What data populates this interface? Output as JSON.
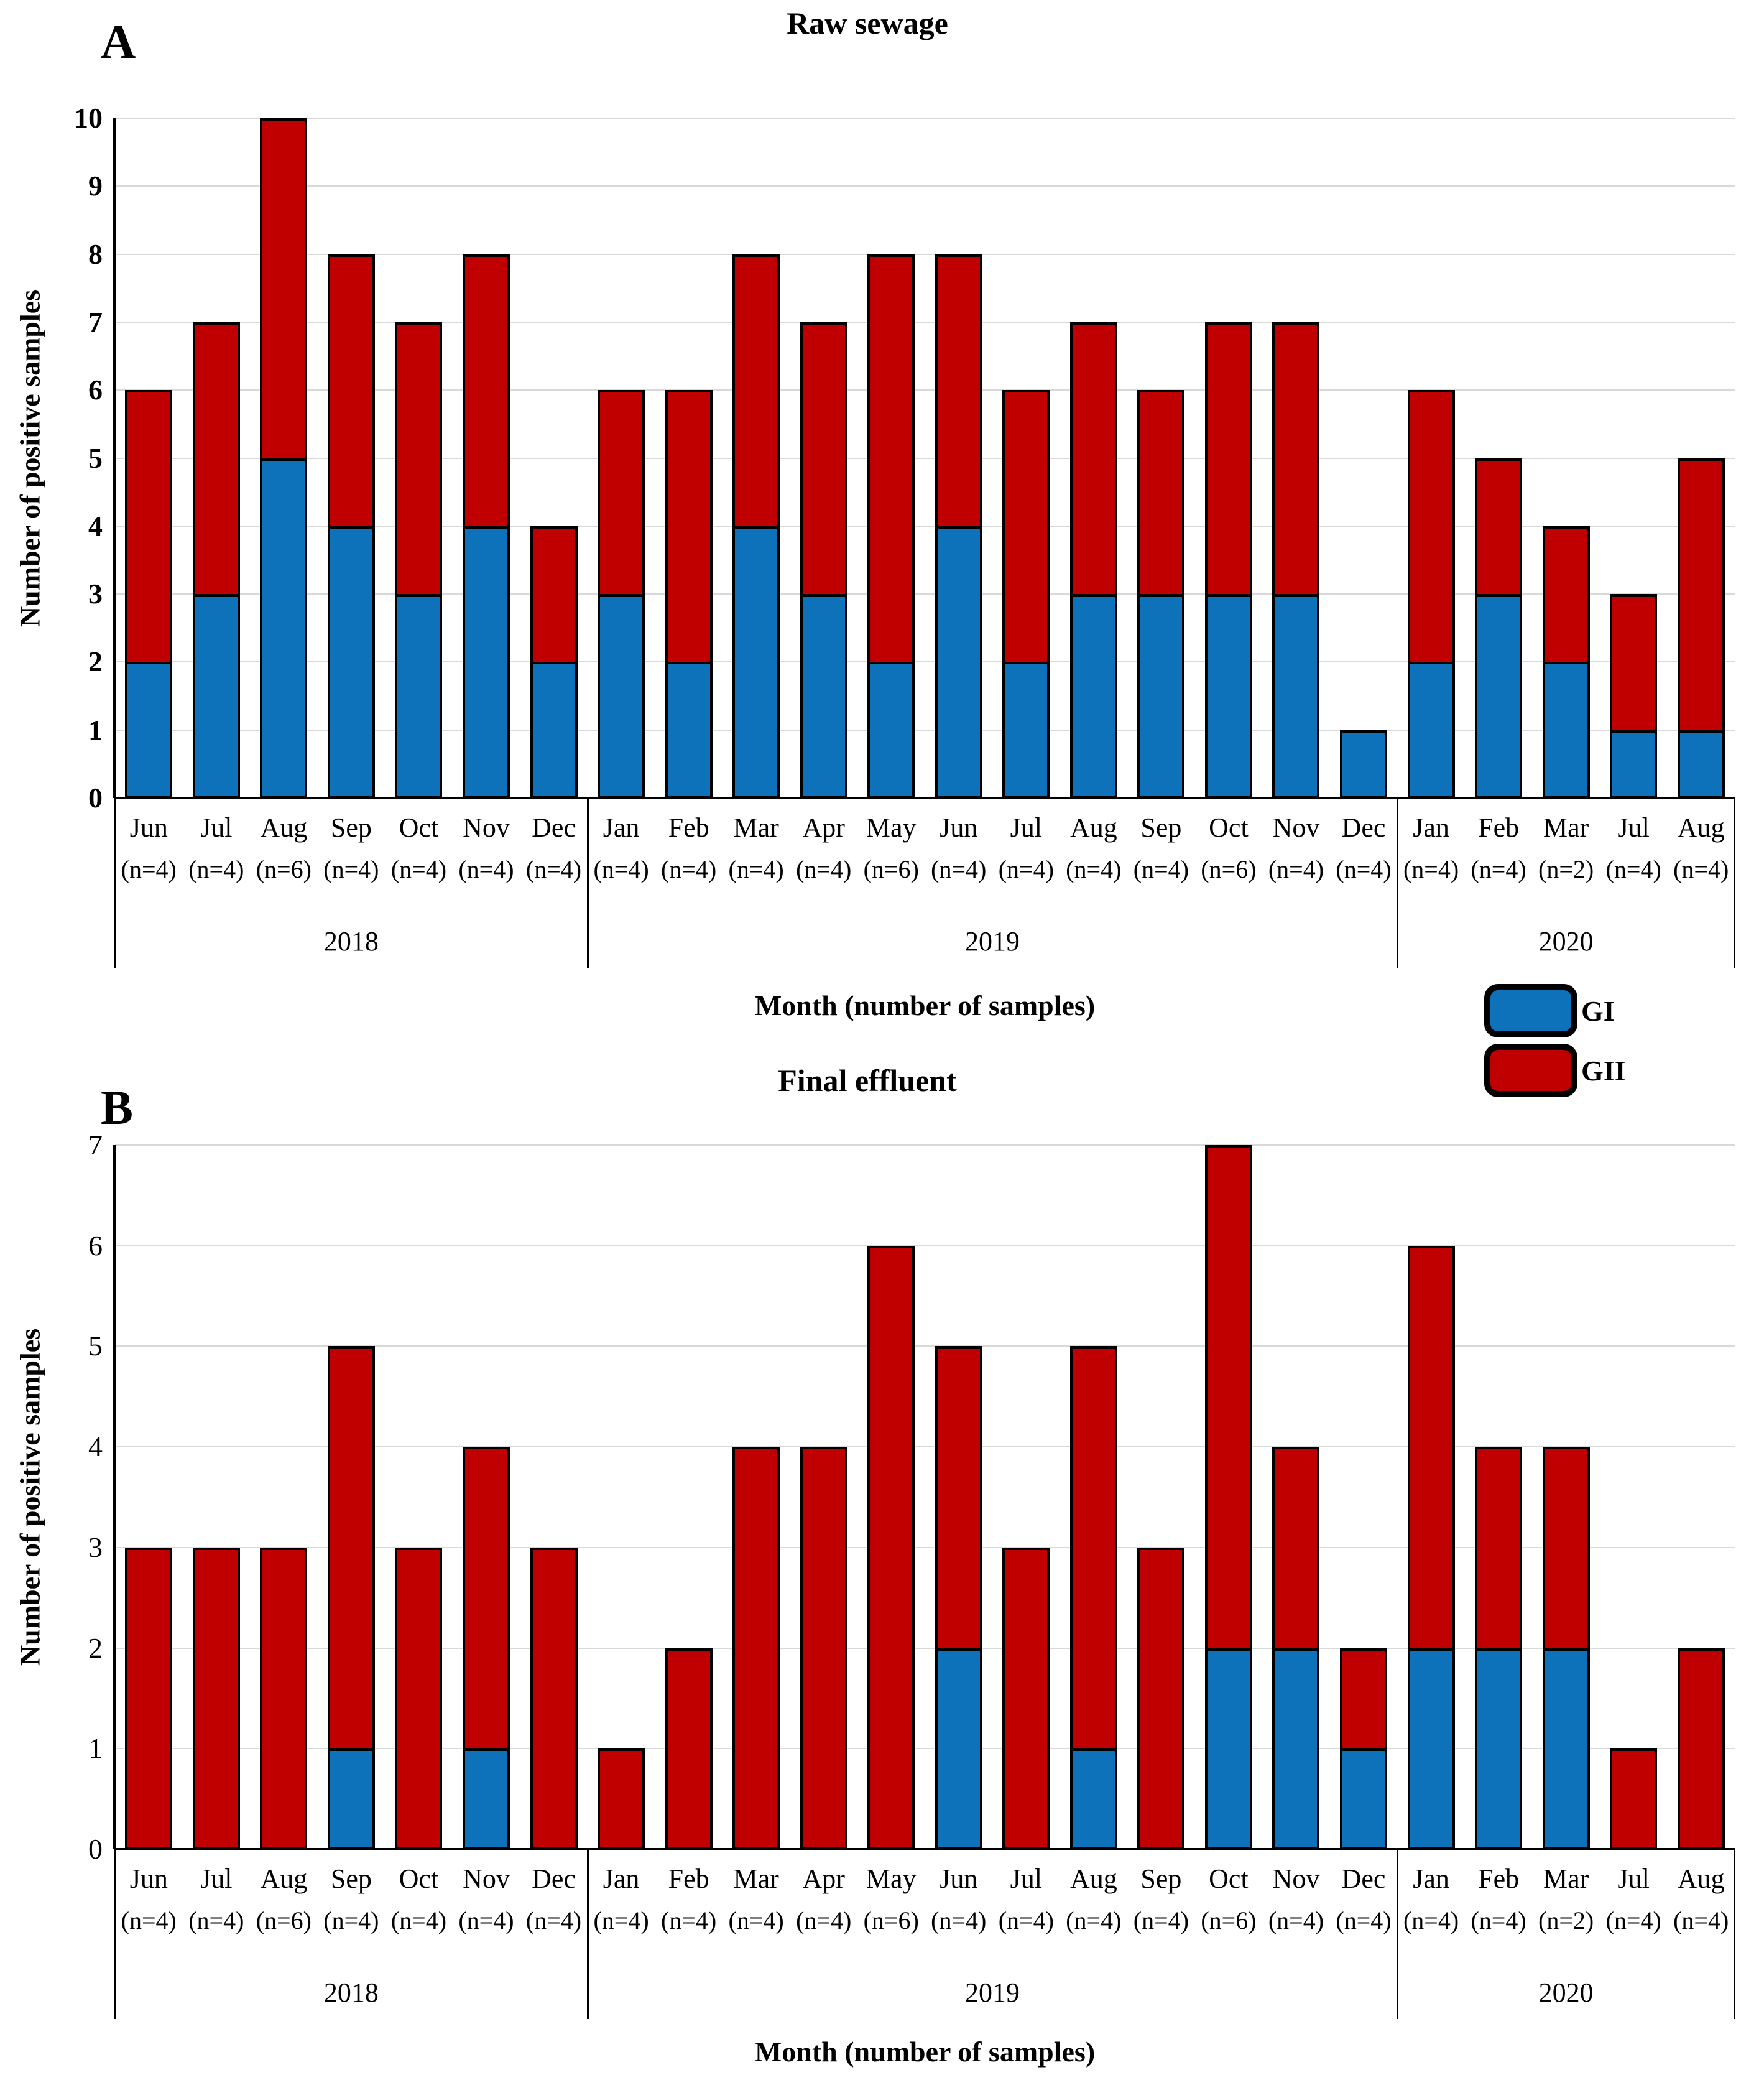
{
  "figure": {
    "panel_a_label": "A",
    "panel_b_label": "B"
  },
  "legend": {
    "items": [
      {
        "label": "GI",
        "color": "#0d72ba"
      },
      {
        "label": "GII",
        "color": "#c00000"
      }
    ]
  },
  "colors": {
    "gi_blue": "#0d72ba",
    "gii_red": "#c00000",
    "gridline": "#d9d9d9",
    "bar_border": "#000000"
  },
  "chart_data": [
    {
      "type": "bar",
      "stacked": true,
      "panel_label": "A",
      "title": "Raw sewage",
      "ylabel": "Number of positive samples",
      "xlabel": "Month (number of samples)",
      "ylim": [
        0,
        10
      ],
      "yticks": [
        0,
        1,
        2,
        3,
        4,
        5,
        6,
        7,
        8,
        9,
        10
      ],
      "grid": true,
      "legend_position": "right-below",
      "categories": [
        "Jun",
        "Jul",
        "Aug",
        "Sep",
        "Oct",
        "Nov",
        "Dec",
        "Jan",
        "Feb",
        "Mar",
        "Apr",
        "May",
        "Jun",
        "Jul",
        "Aug",
        "Sep",
        "Oct",
        "Nov",
        "Dec",
        "Jan",
        "Feb",
        "Mar",
        "Jul",
        "Aug"
      ],
      "n_labels": [
        "(n=4)",
        "(n=4)",
        "(n=6)",
        "(n=4)",
        "(n=4)",
        "(n=4)",
        "(n=4)",
        "(n=4)",
        "(n=4)",
        "(n=4)",
        "(n=4)",
        "(n=6)",
        "(n=4)",
        "(n=4)",
        "(n=4)",
        "(n=4)",
        "(n=6)",
        "(n=4)",
        "(n=4)",
        "(n=4)",
        "(n=4)",
        "(n=2)",
        "(n=4)",
        "(n=4)"
      ],
      "year_groups": [
        {
          "label": "2018",
          "span": 7
        },
        {
          "label": "2019",
          "span": 12
        },
        {
          "label": "2020",
          "span": 5
        }
      ],
      "series": [
        {
          "name": "GI",
          "color": "#0d72ba",
          "values": [
            2,
            3,
            5,
            4,
            3,
            4,
            2,
            3,
            2,
            4,
            3,
            2,
            4,
            2,
            3,
            3,
            3,
            3,
            1,
            2,
            3,
            2,
            1,
            1
          ]
        },
        {
          "name": "GII",
          "color": "#c00000",
          "values": [
            4,
            4,
            5,
            4,
            4,
            4,
            2,
            3,
            4,
            4,
            4,
            6,
            4,
            4,
            4,
            3,
            4,
            4,
            0,
            4,
            2,
            2,
            2,
            4
          ]
        }
      ],
      "totals": [
        6,
        7,
        10,
        8,
        7,
        8,
        4,
        6,
        6,
        8,
        7,
        8,
        8,
        6,
        7,
        6,
        7,
        7,
        1,
        6,
        5,
        4,
        3,
        5
      ]
    },
    {
      "type": "bar",
      "stacked": true,
      "panel_label": "B",
      "title": "Final effluent",
      "ylabel": "Number of positive samples",
      "xlabel": "Month (number of samples)",
      "ylim": [
        0,
        7
      ],
      "yticks": [
        0,
        1,
        2,
        3,
        4,
        5,
        6,
        7
      ],
      "grid": true,
      "categories": [
        "Jun",
        "Jul",
        "Aug",
        "Sep",
        "Oct",
        "Nov",
        "Dec",
        "Jan",
        "Feb",
        "Mar",
        "Apr",
        "May",
        "Jun",
        "Jul",
        "Aug",
        "Sep",
        "Oct",
        "Nov",
        "Dec",
        "Jan",
        "Feb",
        "Mar",
        "Jul",
        "Aug"
      ],
      "n_labels": [
        "(n=4)",
        "(n=4)",
        "(n=6)",
        "(n=4)",
        "(n=4)",
        "(n=4)",
        "(n=4)",
        "(n=4)",
        "(n=4)",
        "(n=4)",
        "(n=4)",
        "(n=6)",
        "(n=4)",
        "(n=4)",
        "(n=4)",
        "(n=4)",
        "(n=6)",
        "(n=4)",
        "(n=4)",
        "(n=4)",
        "(n=4)",
        "(n=2)",
        "(n=4)",
        "(n=4)"
      ],
      "year_groups": [
        {
          "label": "2018",
          "span": 7
        },
        {
          "label": "2019",
          "span": 12
        },
        {
          "label": "2020",
          "span": 5
        }
      ],
      "series": [
        {
          "name": "GI",
          "color": "#0d72ba",
          "values": [
            0,
            0,
            0,
            1,
            0,
            1,
            0,
            0,
            0,
            0,
            0,
            0,
            2,
            0,
            1,
            0,
            2,
            2,
            1,
            2,
            2,
            2,
            0,
            0
          ]
        },
        {
          "name": "GII",
          "color": "#c00000",
          "values": [
            3,
            3,
            3,
            4,
            3,
            3,
            3,
            1,
            2,
            4,
            4,
            6,
            3,
            3,
            4,
            3,
            5,
            2,
            1,
            4,
            2,
            2,
            1,
            2
          ]
        }
      ],
      "totals": [
        3,
        3,
        3,
        5,
        3,
        4,
        3,
        1,
        2,
        4,
        4,
        6,
        5,
        3,
        5,
        3,
        7,
        4,
        2,
        6,
        4,
        4,
        1,
        2
      ]
    }
  ]
}
